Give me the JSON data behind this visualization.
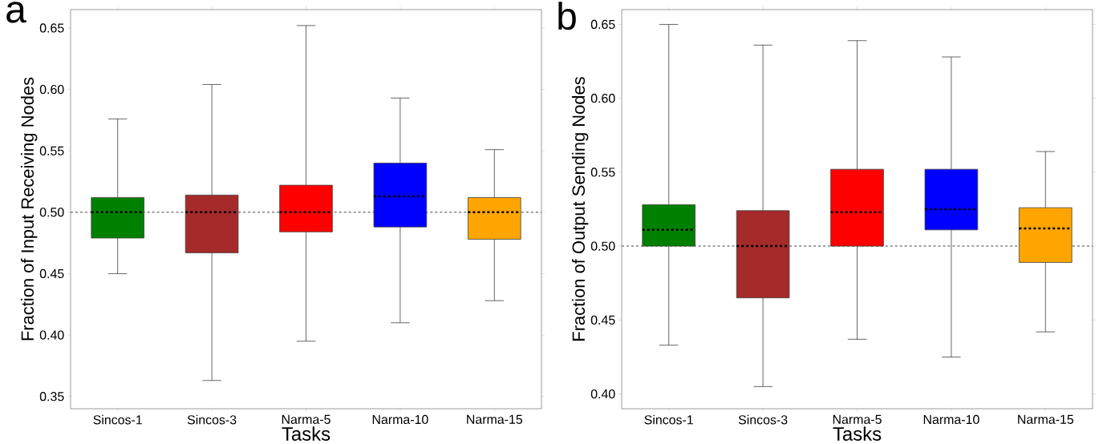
{
  "chart_data": [
    {
      "type": "box",
      "annotations": [
        "a"
      ],
      "xlabel": "Tasks",
      "ylabel": "Fraction of Input Receiving Nodes",
      "categories": [
        "Sincos-1",
        "Sincos-3",
        "Narma-5",
        "Narma-10",
        "Narma-15"
      ],
      "colors": [
        "#008000",
        "#a52a2a",
        "#ff0000",
        "#0000ff",
        "#ffa500"
      ],
      "boxes": [
        {
          "low": 0.45,
          "q1": 0.479,
          "median": 0.5,
          "q3": 0.512,
          "high": 0.576
        },
        {
          "low": 0.363,
          "q1": 0.467,
          "median": 0.5,
          "q3": 0.514,
          "high": 0.604
        },
        {
          "low": 0.395,
          "q1": 0.484,
          "median": 0.5,
          "q3": 0.522,
          "high": 0.652
        },
        {
          "low": 0.41,
          "q1": 0.488,
          "median": 0.513,
          "q3": 0.54,
          "high": 0.593
        },
        {
          "low": 0.428,
          "q1": 0.478,
          "median": 0.5,
          "q3": 0.512,
          "high": 0.551
        }
      ],
      "ylim": [
        0.34,
        0.665
      ],
      "yticks": [
        {
          "value": 0.35,
          "label": "0.35"
        },
        {
          "value": 0.4,
          "label": "0.40"
        },
        {
          "value": 0.45,
          "label": "0.45"
        },
        {
          "value": 0.5,
          "label": "0.50"
        },
        {
          "value": 0.55,
          "label": "0.55"
        },
        {
          "value": 0.6,
          "label": "0.60"
        },
        {
          "value": 0.65,
          "label": "0.65"
        }
      ],
      "ref_lines": [
        {
          "axis": "y",
          "value": 0.5,
          "color": "#808080",
          "line_style": "dashed"
        }
      ]
    },
    {
      "type": "box",
      "annotations": [
        "b"
      ],
      "xlabel": "Tasks",
      "ylabel": "Fraction of Output Sending Nodes",
      "categories": [
        "Sincos-1",
        "Sincos-3",
        "Narma-5",
        "Narma-10",
        "Narma-15"
      ],
      "colors": [
        "#008000",
        "#a52a2a",
        "#ff0000",
        "#0000ff",
        "#ffa500"
      ],
      "boxes": [
        {
          "low": 0.433,
          "q1": 0.5,
          "median": 0.511,
          "q3": 0.528,
          "high": 0.65
        },
        {
          "low": 0.405,
          "q1": 0.465,
          "median": 0.5,
          "q3": 0.524,
          "high": 0.636
        },
        {
          "low": 0.437,
          "q1": 0.5,
          "median": 0.523,
          "q3": 0.552,
          "high": 0.639
        },
        {
          "low": 0.425,
          "q1": 0.511,
          "median": 0.525,
          "q3": 0.552,
          "high": 0.628
        },
        {
          "low": 0.442,
          "q1": 0.489,
          "median": 0.512,
          "q3": 0.526,
          "high": 0.564
        }
      ],
      "ylim": [
        0.39,
        0.66
      ],
      "yticks": [
        {
          "value": 0.4,
          "label": "0.40"
        },
        {
          "value": 0.45,
          "label": "0.45"
        },
        {
          "value": 0.5,
          "label": "0.50"
        },
        {
          "value": 0.55,
          "label": "0.55"
        },
        {
          "value": 0.6,
          "label": "0.60"
        },
        {
          "value": 0.65,
          "label": "0.65"
        }
      ],
      "ref_lines": [
        {
          "axis": "y",
          "value": 0.5,
          "color": "#808080",
          "line_style": "dashed"
        }
      ]
    }
  ]
}
